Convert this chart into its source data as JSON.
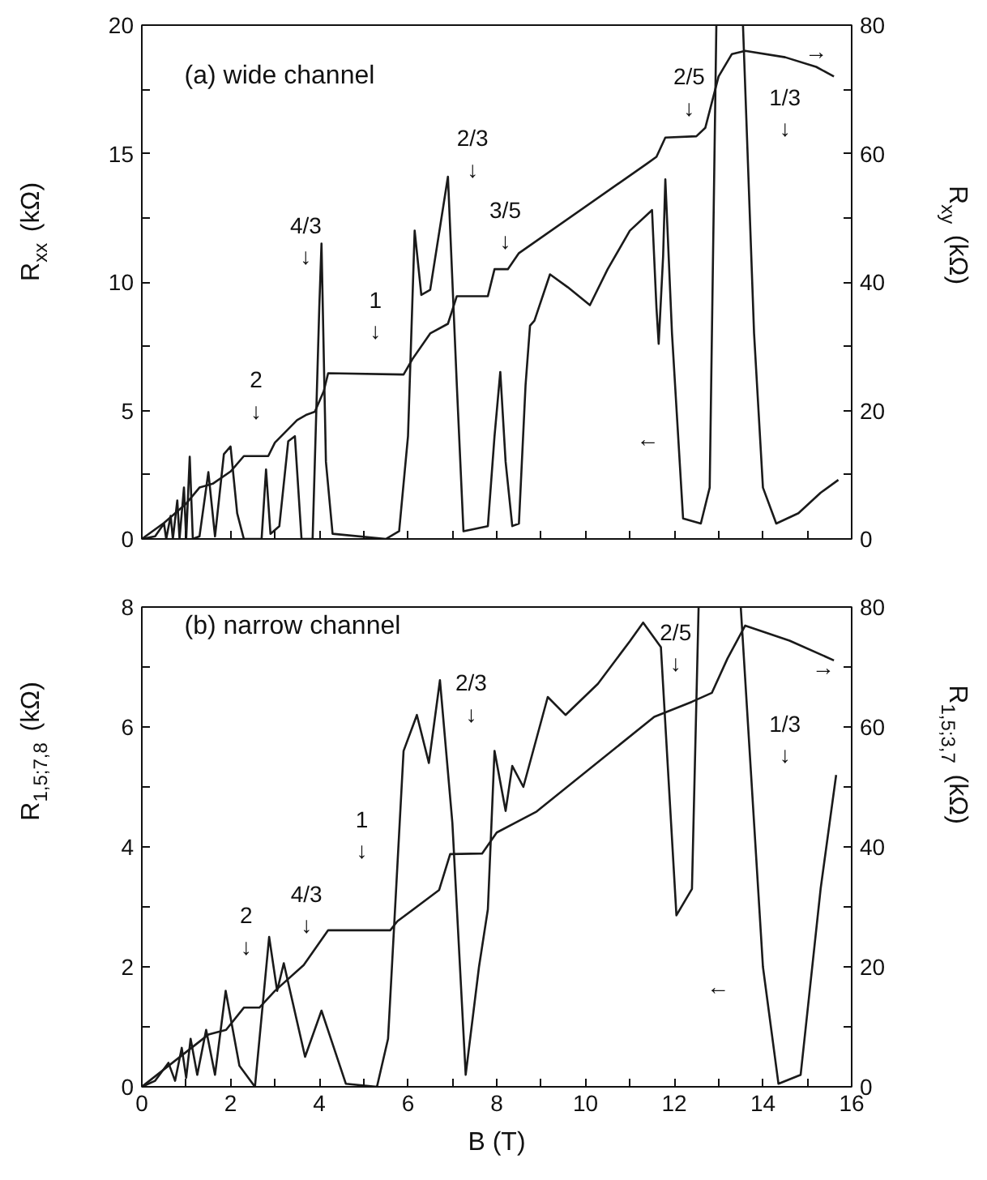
{
  "chart_data": [
    {
      "type": "line",
      "ylabel": "R$_{xx}$ (kΩ)",
      "y2label": "R$_{xy}$ (kΩ)",
      "xlim": [
        0,
        16
      ],
      "xticks": [
        0,
        {
          "value": 1,
          "label": null
        },
        2,
        {
          "value": 3,
          "label": null
        },
        4,
        {
          "value": 5,
          "label": null
        },
        6,
        {
          "value": 7,
          "label": null
        },
        8,
        {
          "value": 9,
          "label": null
        },
        10,
        {
          "value": 11,
          "label": null
        },
        12,
        {
          "value": 13,
          "label": null
        },
        14,
        {
          "value": 15,
          "label": null
        },
        16
      ],
      "ylim": [
        0,
        20
      ],
      "yticks": [
        0,
        {
          "value": 2.5,
          "label": null
        },
        5,
        {
          "value": 7.5,
          "label": null
        },
        10,
        {
          "value": 12.5,
          "label": null
        },
        15,
        {
          "value": 17.5,
          "label": null
        },
        20
      ],
      "y2lim": [
        0,
        80
      ],
      "y2ticks": [
        0,
        {
          "value": 10,
          "label": null
        },
        20,
        {
          "value": 30,
          "label": null
        },
        40,
        {
          "value": 50,
          "label": null
        },
        60,
        {
          "value": 70,
          "label": null
        },
        80
      ],
      "tick_labels": "y",
      "series": [
        {
          "color": "#1a1a1a",
          "x": [
            0,
            0.3,
            0.5,
            0.55,
            0.65,
            0.7,
            0.8,
            0.85,
            0.95,
            1.0,
            1.08,
            1.15,
            1.3,
            1.5,
            1.65,
            1.85,
            2.0,
            2.15,
            2.3,
            2.7,
            2.8,
            2.9,
            3.1,
            3.3,
            3.45,
            3.6,
            3.85,
            4.0,
            4.05,
            4.15,
            4.3,
            5.5,
            5.8,
            6.0,
            6.15,
            6.3,
            6.5,
            6.9,
            7.1,
            7.25,
            7.8,
            7.95,
            8.08,
            8.2,
            8.35,
            8.5,
            8.65,
            8.75,
            8.85,
            9.2,
            9.6,
            10.1,
            10.5,
            11.0,
            11.5,
            11.6,
            11.65,
            11.75,
            11.8,
            11.95,
            12.2,
            12.6,
            12.8,
            12.95,
            13.2,
            13.55,
            13.8,
            14.0,
            14.3,
            14.8,
            15.3,
            15.7
          ],
          "values": [
            0,
            0.1,
            0.6,
            0,
            0.9,
            0,
            1.5,
            0,
            2.0,
            0,
            3.2,
            0,
            0.1,
            2.6,
            0.1,
            3.3,
            3.6,
            1.0,
            0,
            0,
            2.7,
            0.2,
            0.5,
            3.8,
            4.0,
            0,
            0,
            9,
            11.5,
            3,
            0.2,
            0,
            0.3,
            4,
            12,
            9.5,
            9.7,
            14.1,
            6,
            0.3,
            0.5,
            4,
            6.5,
            3,
            0.5,
            0.6,
            6,
            8.3,
            8.5,
            10.3,
            9.8,
            9.1,
            10.5,
            12.0,
            12.8,
            9,
            7.6,
            11,
            14.0,
            8,
            0.8,
            0.6,
            2,
            20,
            null,
            20,
            8,
            2,
            0.6,
            1.0,
            1.8,
            2.3
          ]
        },
        {
          "color": "#1a1a1a",
          "axis": "y2",
          "x": [
            0,
            0.5,
            1.0,
            1.3,
            1.6,
            2.0,
            2.3,
            2.85,
            3.0,
            3.5,
            3.7,
            3.9,
            4.1,
            4.2,
            5.9,
            6.1,
            6.5,
            6.9,
            7.1,
            7.8,
            7.95,
            8.25,
            8.35,
            8.5,
            11.4,
            11.6,
            11.8,
            12.5,
            12.7,
            13.0,
            13.3,
            13.6,
            14.5,
            15.2,
            15.6
          ],
          "values": [
            0,
            2.5,
            5.5,
            8.0,
            8.6,
            10.5,
            12.9,
            12.9,
            15,
            18.5,
            19.3,
            19.8,
            23,
            25.8,
            25.6,
            28,
            32,
            33.5,
            37.8,
            37.8,
            42,
            42,
            43,
            44.5,
            58.5,
            59.5,
            62.5,
            62.7,
            64,
            72,
            75.5,
            76,
            75,
            73.5,
            72
          ]
        }
      ],
      "annotations": [
        "(a) wide channel",
        "2\n↓",
        "4/3\n↓",
        "1\n↓",
        "2/3\n↓",
        "3/5\n↓",
        "2/5\n↓",
        "1/3\n↓",
        "←",
        "→"
      ]
    },
    {
      "type": "line",
      "xlabel": "B (T)",
      "ylabel": "R$_{1,5;7,8}$ (kΩ)",
      "y2label": "R$_{1,5;3,7}$ (kΩ)",
      "xlim": [
        0,
        16
      ],
      "xticks": [
        0,
        {
          "value": 1,
          "label": null
        },
        2,
        {
          "value": 3,
          "label": null
        },
        4,
        {
          "value": 5,
          "label": null
        },
        6,
        {
          "value": 7,
          "label": null
        },
        8,
        {
          "value": 9,
          "label": null
        },
        10,
        {
          "value": 11,
          "label": null
        },
        12,
        {
          "value": 13,
          "label": null
        },
        14,
        {
          "value": 15,
          "label": null
        },
        16
      ],
      "ylim": [
        0,
        8
      ],
      "yticks": [
        0,
        {
          "value": 1,
          "label": null
        },
        2,
        {
          "value": 3,
          "label": null
        },
        4,
        {
          "value": 5,
          "label": null
        },
        6,
        {
          "value": 7,
          "label": null
        },
        8
      ],
      "y2lim": [
        0,
        80
      ],
      "y2ticks": [
        0,
        {
          "value": 10,
          "label": null
        },
        20,
        {
          "value": 30,
          "label": null
        },
        40,
        {
          "value": 50,
          "label": null
        },
        60,
        {
          "value": 70,
          "label": null
        },
        80
      ],
      "series": [
        {
          "color": "#1a1a1a",
          "x": [
            0,
            0.3,
            0.6,
            0.75,
            0.9,
            1.0,
            1.1,
            1.25,
            1.45,
            1.65,
            1.89,
            2.2,
            2.55,
            2.87,
            3.05,
            3.2,
            3.68,
            4.05,
            4.6,
            5.3,
            5.55,
            5.9,
            6.2,
            6.47,
            6.72,
            7.0,
            7.3,
            7.6,
            7.8,
            7.95,
            8.2,
            8.35,
            8.6,
            9.15,
            9.55,
            10.28,
            11.0,
            11.3,
            11.7,
            12.05,
            12.4,
            12.55,
            13.0,
            13.5,
            14.0,
            14.35,
            14.85,
            15.3,
            15.65
          ],
          "values": [
            0,
            0.1,
            0.4,
            0.1,
            0.65,
            0.15,
            0.8,
            0.2,
            0.95,
            0.2,
            1.6,
            0.35,
            0,
            2.5,
            1.6,
            2.06,
            0.5,
            1.27,
            0.05,
            0,
            0.8,
            5.6,
            6.2,
            5.4,
            6.78,
            4.4,
            0.2,
            2.0,
            2.96,
            5.6,
            4.6,
            5.35,
            5.0,
            6.5,
            6.2,
            6.72,
            7.43,
            7.74,
            7.33,
            2.86,
            3.3,
            8,
            null,
            8,
            2,
            0.05,
            0.2,
            3.3,
            5.2
          ]
        },
        {
          "color": "#1a1a1a",
          "axis": "y2",
          "x": [
            0,
            1.5,
            1.9,
            2.3,
            2.65,
            3.0,
            3.65,
            4.2,
            5.6,
            5.76,
            6.7,
            6.95,
            7.67,
            8.0,
            8.9,
            11.55,
            12.4,
            12.85,
            13.2,
            13.6,
            14.6,
            15.6
          ],
          "values": [
            0,
            8.7,
            9.5,
            13.2,
            13.2,
            16,
            20.3,
            26.1,
            26.1,
            27.6,
            32.8,
            38.8,
            38.9,
            42.4,
            45.9,
            61.7,
            64.2,
            65.7,
            71.4,
            76.9,
            74.4,
            71.1
          ]
        }
      ],
      "annotations": [
        "(b) narrow channel",
        "2\n↓",
        "4/3\n↓",
        "1\n↓",
        "2/3\n↓",
        "2/5\n↓",
        "1/3\n↓",
        "←",
        "→"
      ]
    }
  ]
}
